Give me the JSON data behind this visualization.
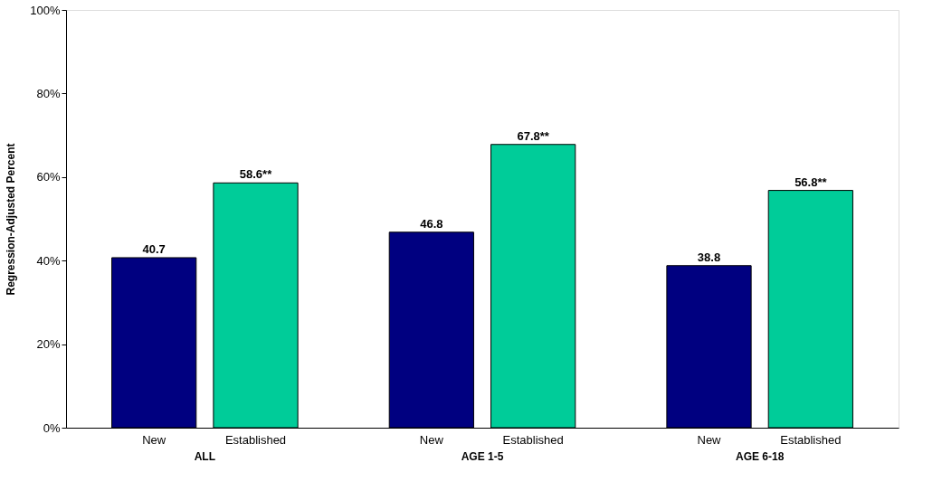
{
  "chart_data": {
    "type": "bar",
    "ylabel": "Regression-Adjusted Percent",
    "categories": [
      "ALL",
      "AGE 1-5",
      "AGE 6-18"
    ],
    "series": [
      {
        "name": "New",
        "color": "#000080",
        "values": [
          40.7,
          46.8,
          38.8
        ],
        "value_labels": [
          "40.7",
          "46.8",
          "38.8"
        ]
      },
      {
        "name": "Established",
        "color": "#00cc99",
        "values": [
          58.6,
          67.8,
          56.8
        ],
        "value_labels": [
          "58.6**",
          "67.8**",
          "56.8**"
        ]
      }
    ],
    "ylim": [
      0,
      100
    ],
    "yticks": [
      {
        "value": 0,
        "label": "0%"
      },
      {
        "value": 20,
        "label": "20%"
      },
      {
        "value": 40,
        "label": "40%"
      },
      {
        "value": 60,
        "label": "60%"
      },
      {
        "value": 80,
        "label": "80%"
      },
      {
        "value": 100,
        "label": "100%"
      }
    ],
    "grid": false,
    "legend": false
  }
}
